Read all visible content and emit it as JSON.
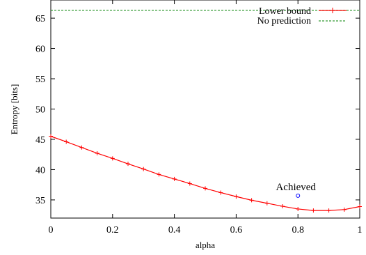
{
  "chart_data": {
    "type": "line",
    "xlabel": "alpha",
    "ylabel": "Entropy [bits]",
    "xlim": [
      0,
      1
    ],
    "ylim": [
      32,
      68
    ],
    "x_ticks": [
      "0",
      "0.2",
      "0.4",
      "0.6",
      "0.8",
      "1"
    ],
    "y_ticks": [
      "35",
      "40",
      "45",
      "50",
      "55",
      "60",
      "65"
    ],
    "legend_position": "top-right",
    "series": [
      {
        "name": "Lower bound",
        "color": "#ff0000",
        "marker": "plus",
        "x": [
          0,
          0.05,
          0.1,
          0.15,
          0.2,
          0.25,
          0.3,
          0.35,
          0.4,
          0.45,
          0.5,
          0.55,
          0.6,
          0.65,
          0.7,
          0.75,
          0.8,
          0.85,
          0.9,
          0.95,
          1.0
        ],
        "y": [
          45.5,
          44.6,
          43.65,
          42.7,
          41.85,
          40.95,
          40.1,
          39.2,
          38.45,
          37.7,
          36.9,
          36.2,
          35.55,
          34.95,
          34.45,
          33.95,
          33.5,
          33.25,
          33.25,
          33.4,
          33.9
        ]
      },
      {
        "name": "No prediction",
        "color": "#008000",
        "style": "dashed",
        "x": [
          0,
          1
        ],
        "y": [
          66.3,
          66.3
        ]
      }
    ],
    "points": [
      {
        "label": "Achieved",
        "x": 0.8,
        "y": 35.7,
        "color": "#0000ff",
        "marker": "circle"
      }
    ]
  }
}
